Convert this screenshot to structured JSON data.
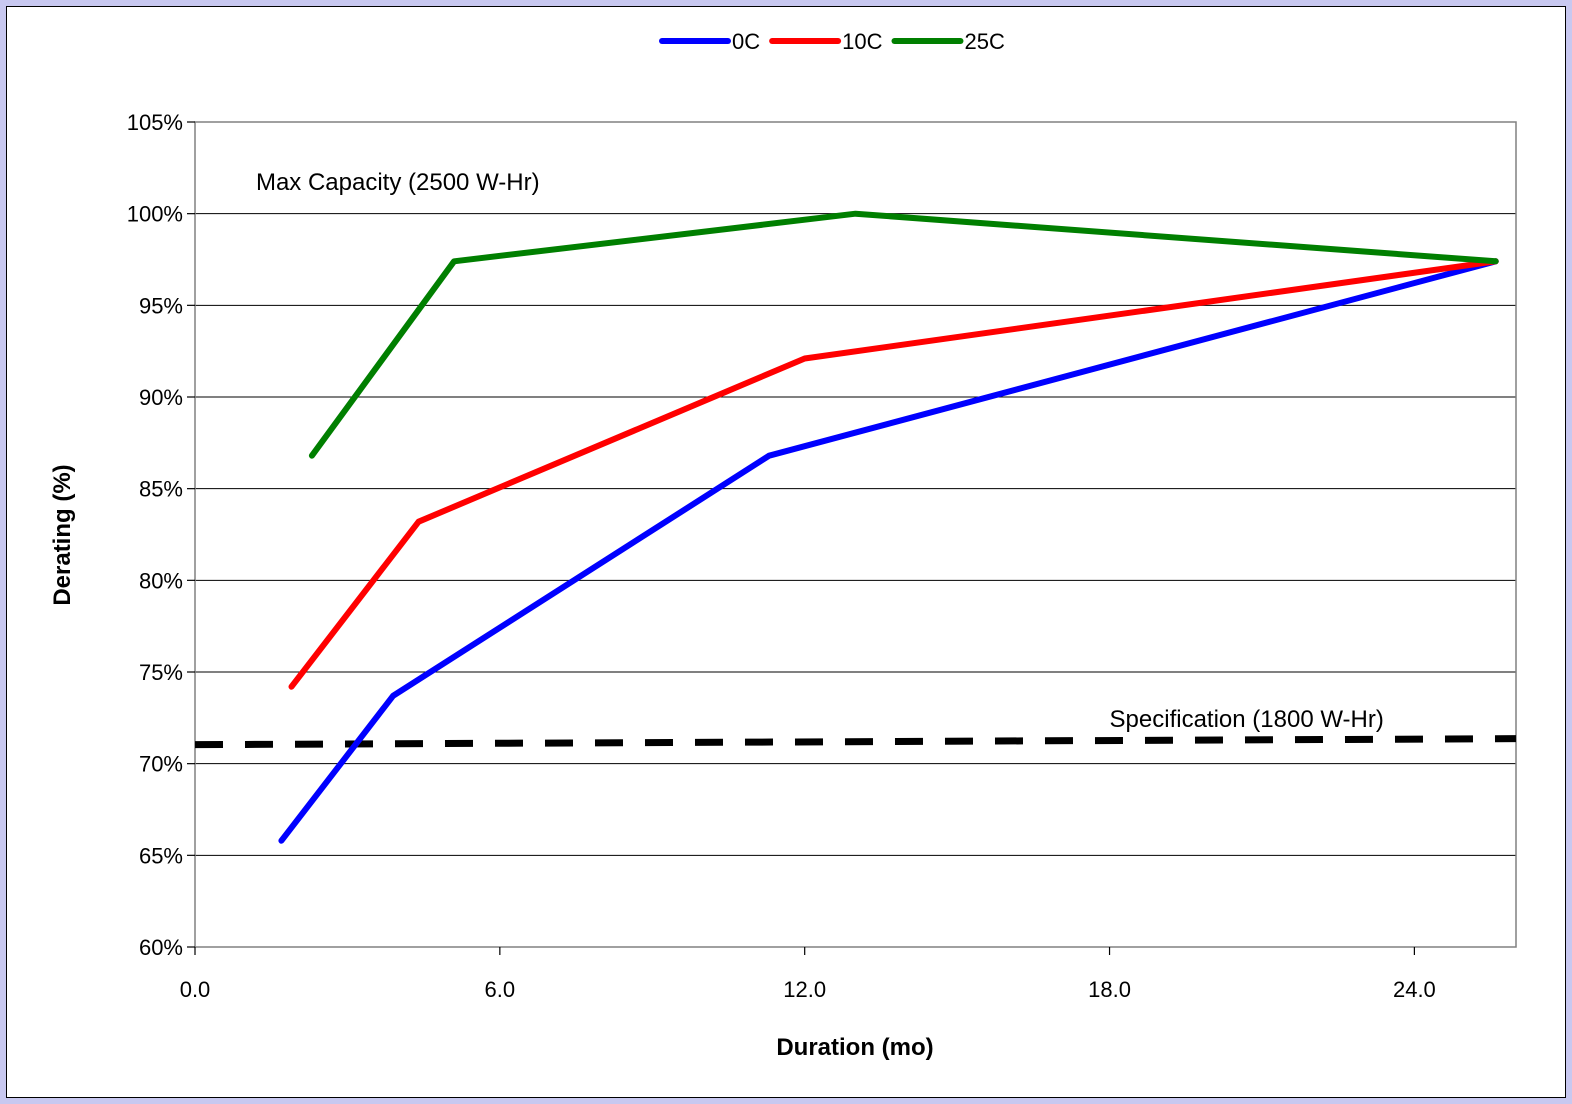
{
  "chart_data": {
    "type": "line",
    "title": "",
    "xlabel": "Duration (mo)",
    "ylabel": "Derating (%)",
    "xlim": [
      0,
      26
    ],
    "ylim": [
      60,
      105
    ],
    "x_ticks": [
      0,
      6,
      12,
      18,
      24
    ],
    "x_tick_labels": [
      "0.0",
      "6.0",
      "12.0",
      "18.0",
      "24.0"
    ],
    "y_ticks": [
      60,
      65,
      70,
      75,
      80,
      85,
      90,
      95,
      100,
      105
    ],
    "y_tick_labels": [
      "60%",
      "65%",
      "70%",
      "75%",
      "80%",
      "85%",
      "90%",
      "95%",
      "100%",
      "105%"
    ],
    "grid": "horizontal",
    "legend_position": "top",
    "series": [
      {
        "name": "0C",
        "color": "#0000ff",
        "points": [
          [
            1.7,
            65.8
          ],
          [
            3.9,
            73.7
          ],
          [
            11.3,
            86.8
          ],
          [
            25.6,
            97.4
          ]
        ]
      },
      {
        "name": "10C",
        "color": "#ff0000",
        "points": [
          [
            1.9,
            74.2
          ],
          [
            4.4,
            83.2
          ],
          [
            12.0,
            92.1
          ],
          [
            25.6,
            97.4
          ]
        ]
      },
      {
        "name": "25C",
        "color": "#007f00",
        "points": [
          [
            2.3,
            86.8
          ],
          [
            5.1,
            97.4
          ],
          [
            13.0,
            100.0
          ],
          [
            25.6,
            97.4
          ]
        ]
      }
    ],
    "reference_line": {
      "color": "#000000",
      "style": "dashed",
      "points": [
        [
          0,
          71.2
        ],
        [
          26,
          71.2
        ]
      ]
    },
    "annotations": [
      {
        "id": "max",
        "text": "Max Capacity (2500 W-Hr)",
        "x": 1.2,
        "y": 101.3
      },
      {
        "id": "spec",
        "text": "Specification (1800 W-Hr)",
        "x": 18.0,
        "y": 72.0
      }
    ]
  }
}
